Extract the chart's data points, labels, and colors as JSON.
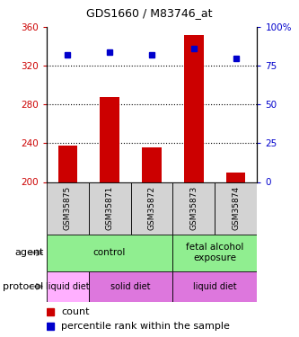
{
  "title": "GDS1660 / M83746_at",
  "samples": [
    "GSM35875",
    "GSM35871",
    "GSM35872",
    "GSM35873",
    "GSM35874"
  ],
  "counts": [
    238,
    288,
    236,
    352,
    210
  ],
  "percentiles": [
    82,
    84,
    82,
    86,
    80
  ],
  "ylim_left": [
    200,
    360
  ],
  "ylim_right": [
    0,
    100
  ],
  "yticks_left": [
    200,
    240,
    280,
    320,
    360
  ],
  "yticks_right": [
    0,
    25,
    50,
    75,
    100
  ],
  "yticks_right_labels": [
    "0",
    "25",
    "50",
    "75",
    "100%"
  ],
  "bar_color": "#cc0000",
  "dot_color": "#0000cc",
  "bar_bottom": 200,
  "agent_spans": [
    {
      "text": "control",
      "start": 0,
      "end": 3,
      "color": "#90ee90"
    },
    {
      "text": "fetal alcohol\nexposure",
      "start": 3,
      "end": 5,
      "color": "#90ee90"
    }
  ],
  "proto_spans": [
    {
      "text": "liquid diet",
      "start": 0,
      "end": 1,
      "color": "#ffb0ff"
    },
    {
      "text": "solid diet",
      "start": 1,
      "end": 3,
      "color": "#dd77dd"
    },
    {
      "text": "liquid diet",
      "start": 3,
      "end": 5,
      "color": "#dd77dd"
    }
  ],
  "legend_count_color": "#cc0000",
  "legend_pct_color": "#0000cc",
  "tick_color_left": "#cc0000",
  "tick_color_right": "#0000cc",
  "grid_ticks": [
    240,
    280,
    320
  ]
}
